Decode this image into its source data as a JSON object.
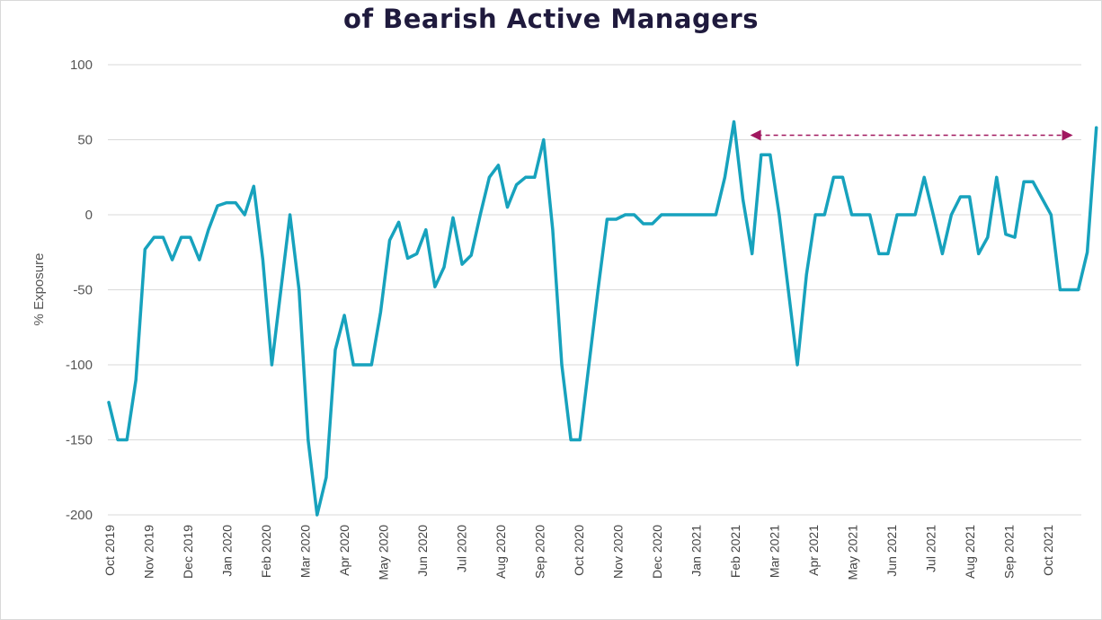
{
  "chart_data": {
    "type": "line",
    "title": "of Bearish Active Managers",
    "ylabel": "% Exposure",
    "xlabel": "",
    "ylim": [
      -200,
      100
    ],
    "yticks": [
      100,
      50,
      0,
      -50,
      -100,
      -150,
      -200
    ],
    "grid": true,
    "x_tick_labels": [
      "Oct 2019",
      "Nov 2019",
      "Dec 2019",
      "Jan 2020",
      "Feb 2020",
      "Mar 2020",
      "Apr 2020",
      "May 2020",
      "Jun 2020",
      "Jul 2020",
      "Aug 2020",
      "Sep 2020",
      "Oct 2020",
      "Nov 2020",
      "Dec 2020",
      "Jan 2021",
      "Feb 2021",
      "Mar 2021",
      "Apr 2021",
      "May 2021",
      "Jun 2021",
      "Jul 2021",
      "Aug 2021",
      "Sep 2021",
      "Oct 2021"
    ],
    "series": [
      {
        "color": "#17a2bd",
        "values": [
          -125,
          -150,
          -150,
          -110,
          -23,
          -15,
          -15,
          -30,
          -15,
          -15,
          -30,
          -10,
          6,
          8,
          8,
          0,
          19,
          -30,
          -100,
          -50,
          0,
          -50,
          -150,
          -200,
          -175,
          -90,
          -67,
          -100,
          -100,
          -100,
          -65,
          -17,
          -5,
          -29,
          -26,
          -10,
          -48,
          -35,
          -2,
          -33,
          -27,
          0,
          25,
          33,
          5,
          20,
          25,
          25,
          50,
          -10,
          -100,
          -150,
          -150,
          -100,
          -50,
          -3,
          -3,
          0,
          0,
          -6,
          -6,
          0,
          0,
          0,
          0,
          0,
          0,
          0,
          25,
          62,
          10,
          -26,
          40,
          40,
          0,
          -50,
          -100,
          -40,
          0,
          0,
          25,
          25,
          0,
          0,
          0,
          -26,
          -26,
          0,
          0,
          0,
          25,
          0,
          -26,
          0,
          12,
          12,
          -26,
          -15,
          25,
          -13,
          -15,
          22,
          22,
          11,
          0,
          -50,
          -50,
          -50,
          -25,
          58
        ]
      }
    ],
    "annotation": {
      "type": "double-arrow",
      "color": "#a0175f",
      "from_index": 70,
      "to_index": 107,
      "y": 53
    }
  }
}
